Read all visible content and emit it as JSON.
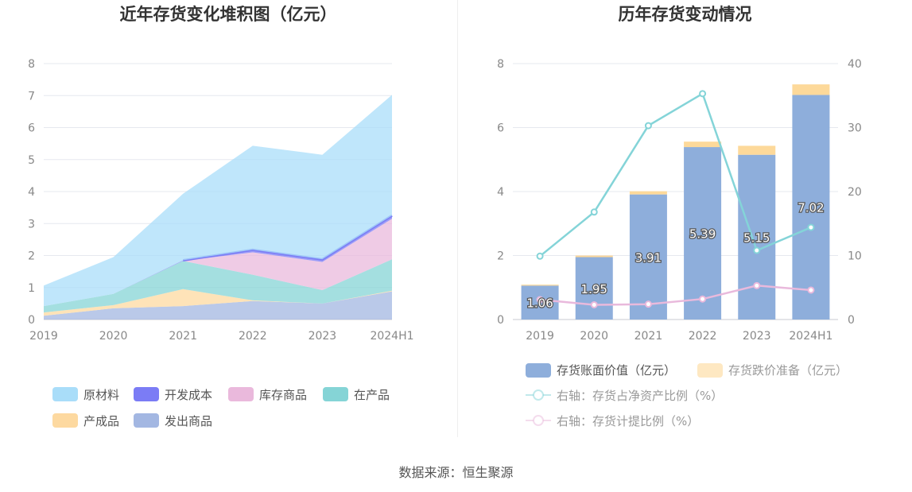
{
  "source": "数据来源：恒生聚源",
  "colors": {
    "raw": "#a9ddf9",
    "wip_dev": "#7b7cf5",
    "goods": "#eab9dc",
    "in_prod": "#85d4d6",
    "finished": "#fdd9a0",
    "shipped": "#a3b7e2",
    "bar_book": "#8eaedb",
    "bar_reserve": "#fdd99a",
    "line_ratio": "#84d4d8",
    "line_provision": "#e9b9dc"
  },
  "chart_data": [
    {
      "type": "area",
      "title": "近年存货变化堆积图（亿元）",
      "categories": [
        "2019",
        "2020",
        "2021",
        "2022",
        "2023",
        "2024H1"
      ],
      "ylim": [
        0,
        8
      ],
      "yticks": [
        "0",
        "1",
        "2",
        "3",
        "4",
        "5",
        "6",
        "7",
        "8"
      ],
      "series": [
        {
          "name": "发出商品",
          "key": "shipped",
          "values": [
            0.12,
            0.35,
            0.42,
            0.58,
            0.5,
            0.88
          ]
        },
        {
          "name": "产成品",
          "key": "finished",
          "values": [
            0.1,
            0.1,
            0.53,
            0.02,
            0.0,
            0.02
          ]
        },
        {
          "name": "在产品",
          "key": "in_prod",
          "values": [
            0.2,
            0.35,
            0.88,
            0.8,
            0.42,
            0.98
          ]
        },
        {
          "name": "库存商品",
          "key": "goods",
          "values": [
            0.0,
            0.0,
            0.0,
            0.7,
            0.88,
            1.27
          ]
        },
        {
          "name": "开发成本",
          "key": "wip_dev",
          "values": [
            0.0,
            0.0,
            0.02,
            0.08,
            0.08,
            0.1
          ]
        },
        {
          "name": "原材料",
          "key": "raw",
          "values": [
            0.64,
            1.15,
            2.08,
            3.25,
            3.27,
            3.77
          ]
        }
      ],
      "legend": [
        {
          "name": "原材料",
          "key": "raw"
        },
        {
          "name": "开发成本",
          "key": "wip_dev"
        },
        {
          "name": "库存商品",
          "key": "goods"
        },
        {
          "name": "在产品",
          "key": "in_prod"
        },
        {
          "name": "产成品",
          "key": "finished"
        },
        {
          "name": "发出商品",
          "key": "shipped"
        }
      ]
    },
    {
      "type": "bar+line",
      "title": "历年存货变动情况",
      "categories": [
        "2019",
        "2020",
        "2021",
        "2022",
        "2023",
        "2024H1"
      ],
      "ylim_left": [
        0,
        8
      ],
      "yticks_left": [
        "0",
        "2",
        "4",
        "6",
        "8"
      ],
      "ylim_right": [
        0,
        40
      ],
      "yticks_right": [
        "0",
        "10",
        "20",
        "30",
        "40"
      ],
      "bars": [
        {
          "name": "存货账面价值（亿元）",
          "key": "bar_book",
          "values": [
            1.06,
            1.95,
            3.91,
            5.39,
            5.15,
            7.02
          ],
          "labels": [
            "1.06",
            "1.95",
            "3.91",
            "5.39",
            "5.15",
            "7.02"
          ]
        },
        {
          "name": "存货跌价准备（亿元）",
          "key": "bar_reserve",
          "values": [
            0.03,
            0.05,
            0.1,
            0.17,
            0.28,
            0.33
          ]
        }
      ],
      "lines": [
        {
          "name": "右轴：存货占净资产比例（%）",
          "key": "line_ratio",
          "values": [
            9.9,
            16.8,
            30.3,
            35.3,
            10.8,
            14.4
          ]
        },
        {
          "name": "右轴：存货计提比例（%）",
          "key": "line_provision",
          "values": [
            3.1,
            2.3,
            2.4,
            3.2,
            5.3,
            4.6
          ]
        }
      ]
    }
  ]
}
